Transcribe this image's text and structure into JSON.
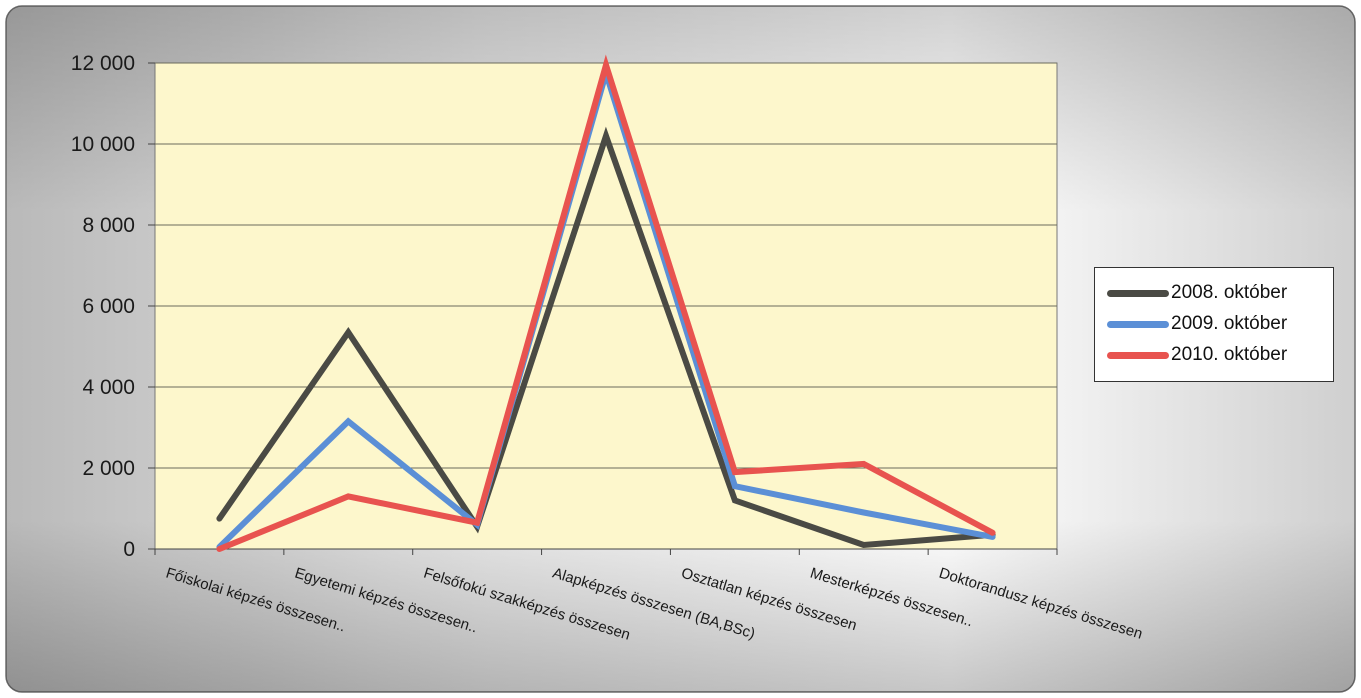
{
  "chart_data": {
    "type": "line",
    "categories": [
      "Főiskolai képzés összesen..",
      "Egyetemi képzés összesen..",
      "Felsőfokú szakképzés összesen",
      "Alapképzés összesen (BA,BSc)",
      "Osztatlan képzés összesen",
      "Mesterképzés összesen..",
      "Doktorandusz képzés összesen"
    ],
    "series": [
      {
        "name": "2008. október",
        "color": "#4a4a44",
        "values": [
          750,
          5350,
          550,
          10200,
          1200,
          100,
          350
        ]
      },
      {
        "name": "2009. október",
        "color": "#5b8fd6",
        "values": [
          50,
          3150,
          600,
          11750,
          1550,
          900,
          300
        ]
      },
      {
        "name": "2010. október",
        "color": "#e8534f",
        "values": [
          0,
          1300,
          650,
          11950,
          1900,
          2100,
          400
        ]
      }
    ],
    "yticks": [
      "0",
      "2 000",
      "4 000",
      "6 000",
      "8 000",
      "10 000",
      "12 000"
    ],
    "ylim": [
      0,
      12000
    ],
    "title": "",
    "xlabel": "",
    "ylabel": "",
    "grid": true,
    "legend_position": "right",
    "plot_background": "#fdf7cc"
  }
}
